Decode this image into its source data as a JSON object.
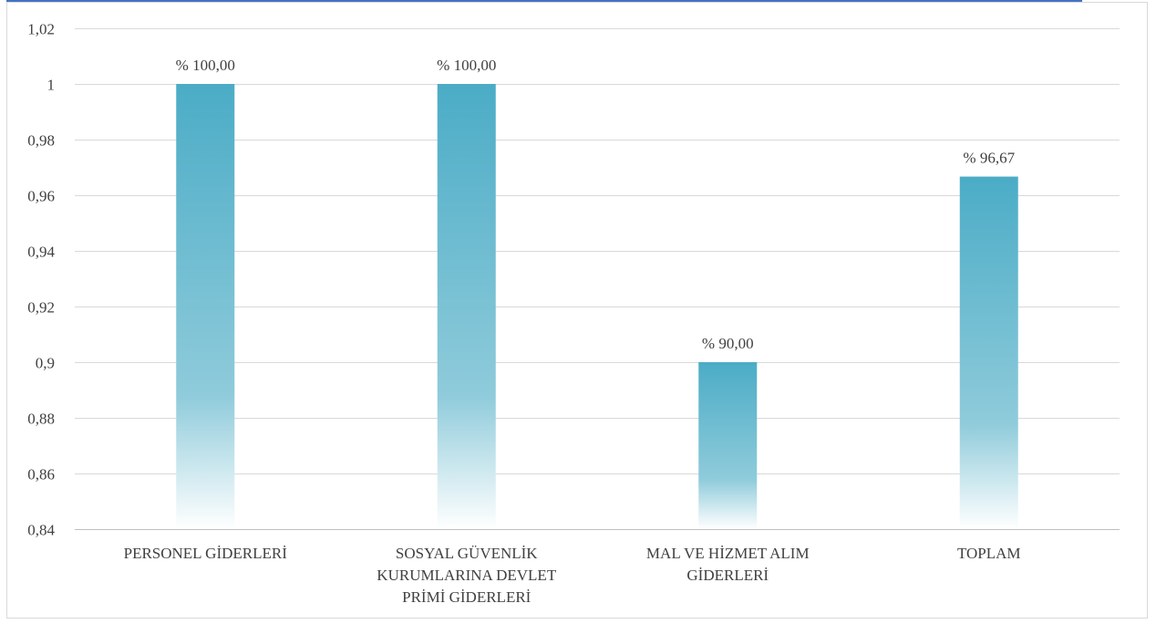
{
  "chart_data": {
    "type": "bar",
    "title": "",
    "xlabel": "",
    "ylabel": "",
    "ylim": [
      0.84,
      1.02
    ],
    "yticks": [
      0.84,
      0.86,
      0.88,
      0.9,
      0.92,
      0.94,
      0.96,
      0.98,
      1,
      1.02
    ],
    "ytick_labels": [
      "0,84",
      "0,86",
      "0,88",
      "0,9",
      "0,92",
      "0,94",
      "0,96",
      "0,98",
      "1",
      "1,02"
    ],
    "categories": [
      [
        "PERSONEL GİDERLERİ"
      ],
      [
        "SOSYAL GÜVENLİK",
        "KURUMLARINA DEVLET",
        "PRİMİ GİDERLERİ"
      ],
      [
        "MAL VE HİZMET ALIM",
        "GİDERLERİ"
      ],
      [
        "TOPLAM"
      ]
    ],
    "values": [
      1.0,
      1.0,
      0.9,
      0.9667
    ],
    "data_labels": [
      "% 100,00",
      "% 100,00",
      "% 90,00",
      "% 96,67"
    ],
    "grid": true,
    "legend": "none",
    "colors": {
      "bar_top": "#4bacc6",
      "bar_bottom": "#ffffff",
      "grid": "#d9d9d9",
      "text": "#404040"
    }
  }
}
